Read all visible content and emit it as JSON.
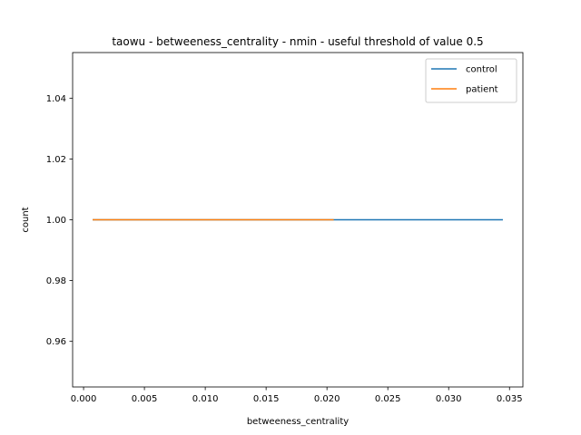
{
  "chart_data": {
    "type": "line",
    "title": "taowu - betweeness_centrality - nmin - useful threshold of value 0.5",
    "xlabel": "betweeness_centrality",
    "ylabel": "count",
    "xlim": [
      -0.0009,
      0.0361
    ],
    "ylim": [
      0.945,
      1.055
    ],
    "xticks": [
      0.0,
      0.005,
      0.01,
      0.015,
      0.02,
      0.025,
      0.03,
      0.035
    ],
    "xtick_labels": [
      "0.000",
      "0.005",
      "0.010",
      "0.015",
      "0.020",
      "0.025",
      "0.030",
      "0.035"
    ],
    "yticks": [
      0.96,
      0.98,
      1.0,
      1.02,
      1.04
    ],
    "ytick_labels": [
      "0.96",
      "0.98",
      "1.00",
      "1.02",
      "1.04"
    ],
    "grid": false,
    "legend_position": "top-right",
    "series": [
      {
        "name": "control",
        "color": "#1f77b4",
        "x": [
          0.0008,
          0.0344
        ],
        "y": [
          1.0,
          1.0
        ]
      },
      {
        "name": "patient",
        "color": "#ff7f0e",
        "x": [
          0.0008,
          0.0205
        ],
        "y": [
          1.0,
          1.0
        ]
      }
    ]
  }
}
